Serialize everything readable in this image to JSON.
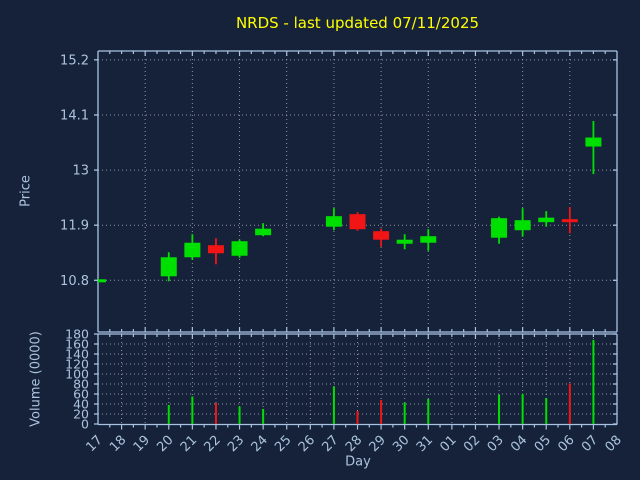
{
  "title": "NRDS - last updated 07/11/2025",
  "xlabel": "Day",
  "price_panel": {
    "ylabel": "Price",
    "ytick_labels": [
      "15.2",
      "14.1",
      "13",
      "11.9",
      "10.8"
    ],
    "ytick_values": [
      15.2,
      14.1,
      13.0,
      11.9,
      10.8
    ]
  },
  "volume_panel": {
    "ylabel": "Volume (0000)",
    "ytick_values": [
      180,
      160,
      140,
      120,
      100,
      80,
      60,
      40,
      20,
      0
    ]
  },
  "colors": {
    "background": "#16223a",
    "title": "#ffff00",
    "axis_text": "#abc3de",
    "spine": "#a9c4e2",
    "grid": "#b5bdc6",
    "up": "#00e000",
    "down": "#f21515"
  },
  "chart_data": [
    {
      "type": "candlestick",
      "title": "NRDS - last updated 07/11/2025",
      "xlabel": "Day",
      "ylabel": "Price",
      "x_tick_labels": [
        "17",
        "18",
        "19",
        "20",
        "21",
        "22",
        "23",
        "24",
        "25",
        "26",
        "27",
        "28",
        "29",
        "30",
        "31",
        "01",
        "02",
        "03",
        "04",
        "05",
        "06",
        "07",
        "08"
      ],
      "ytick_values": [
        15.2,
        14.1,
        13.0,
        11.9,
        10.8
      ],
      "ylim": [
        9.77,
        15.39
      ],
      "grid": "dotted; horizontal at y ticks, vertical every 2 days (days 19,21,23,25,27,29,31,02,04,06)",
      "grid_days": [
        "19",
        "21",
        "23",
        "25",
        "27",
        "29",
        "31",
        "02",
        "04",
        "06"
      ],
      "candles": [
        {
          "day": "17",
          "open": 10.76,
          "high": 10.84,
          "low": 10.74,
          "close": 10.82
        },
        {
          "day": "20",
          "open": 10.88,
          "high": 11.36,
          "low": 10.78,
          "close": 11.26
        },
        {
          "day": "21",
          "open": 11.26,
          "high": 11.72,
          "low": 11.21,
          "close": 11.55
        },
        {
          "day": "22",
          "open": 11.5,
          "high": 11.64,
          "low": 11.12,
          "close": 11.34
        },
        {
          "day": "23",
          "open": 11.29,
          "high": 11.61,
          "low": 11.25,
          "close": 11.58
        },
        {
          "day": "24",
          "open": 11.7,
          "high": 11.94,
          "low": 11.68,
          "close": 11.83
        },
        {
          "day": "27",
          "open": 11.87,
          "high": 12.24,
          "low": 11.8,
          "close": 12.08
        },
        {
          "day": "28",
          "open": 12.12,
          "high": 12.16,
          "low": 11.79,
          "close": 11.82
        },
        {
          "day": "29",
          "open": 11.78,
          "high": 11.83,
          "low": 11.47,
          "close": 11.61
        },
        {
          "day": "30",
          "open": 11.53,
          "high": 11.72,
          "low": 11.42,
          "close": 11.61
        },
        {
          "day": "31",
          "open": 11.55,
          "high": 11.82,
          "low": 11.39,
          "close": 11.68
        },
        {
          "day": "03",
          "open": 11.65,
          "high": 12.07,
          "low": 11.53,
          "close": 12.04
        },
        {
          "day": "04",
          "open": 11.8,
          "high": 12.24,
          "low": 11.67,
          "close": 12.0
        },
        {
          "day": "05",
          "open": 11.96,
          "high": 12.18,
          "low": 11.87,
          "close": 12.05
        },
        {
          "day": "06",
          "open": 12.02,
          "high": 12.26,
          "low": 11.74,
          "close": 11.96
        },
        {
          "day": "07",
          "open": 13.47,
          "high": 13.98,
          "low": 12.92,
          "close": 13.65
        }
      ]
    },
    {
      "type": "bar",
      "ylabel": "Volume (0000)",
      "ytick_values": [
        180,
        160,
        140,
        120,
        100,
        80,
        60,
        40,
        20,
        0
      ],
      "ylim": [
        0,
        180
      ],
      "grid": "dotted; horizontal every 20, vertical every day",
      "bars": [
        {
          "day": "17",
          "value": 0
        },
        {
          "day": "20",
          "value": 38
        },
        {
          "day": "21",
          "value": 55
        },
        {
          "day": "22",
          "value": 42
        },
        {
          "day": "23",
          "value": 35
        },
        {
          "day": "24",
          "value": 30
        },
        {
          "day": "27",
          "value": 75
        },
        {
          "day": "28",
          "value": 26
        },
        {
          "day": "29",
          "value": 48
        },
        {
          "day": "30",
          "value": 43
        },
        {
          "day": "31",
          "value": 50
        },
        {
          "day": "03",
          "value": 58
        },
        {
          "day": "04",
          "value": 60
        },
        {
          "day": "05",
          "value": 52
        },
        {
          "day": "06",
          "value": 81
        },
        {
          "day": "07",
          "value": 168
        }
      ],
      "bar_color_rule": "green on up day, red on down day"
    }
  ]
}
